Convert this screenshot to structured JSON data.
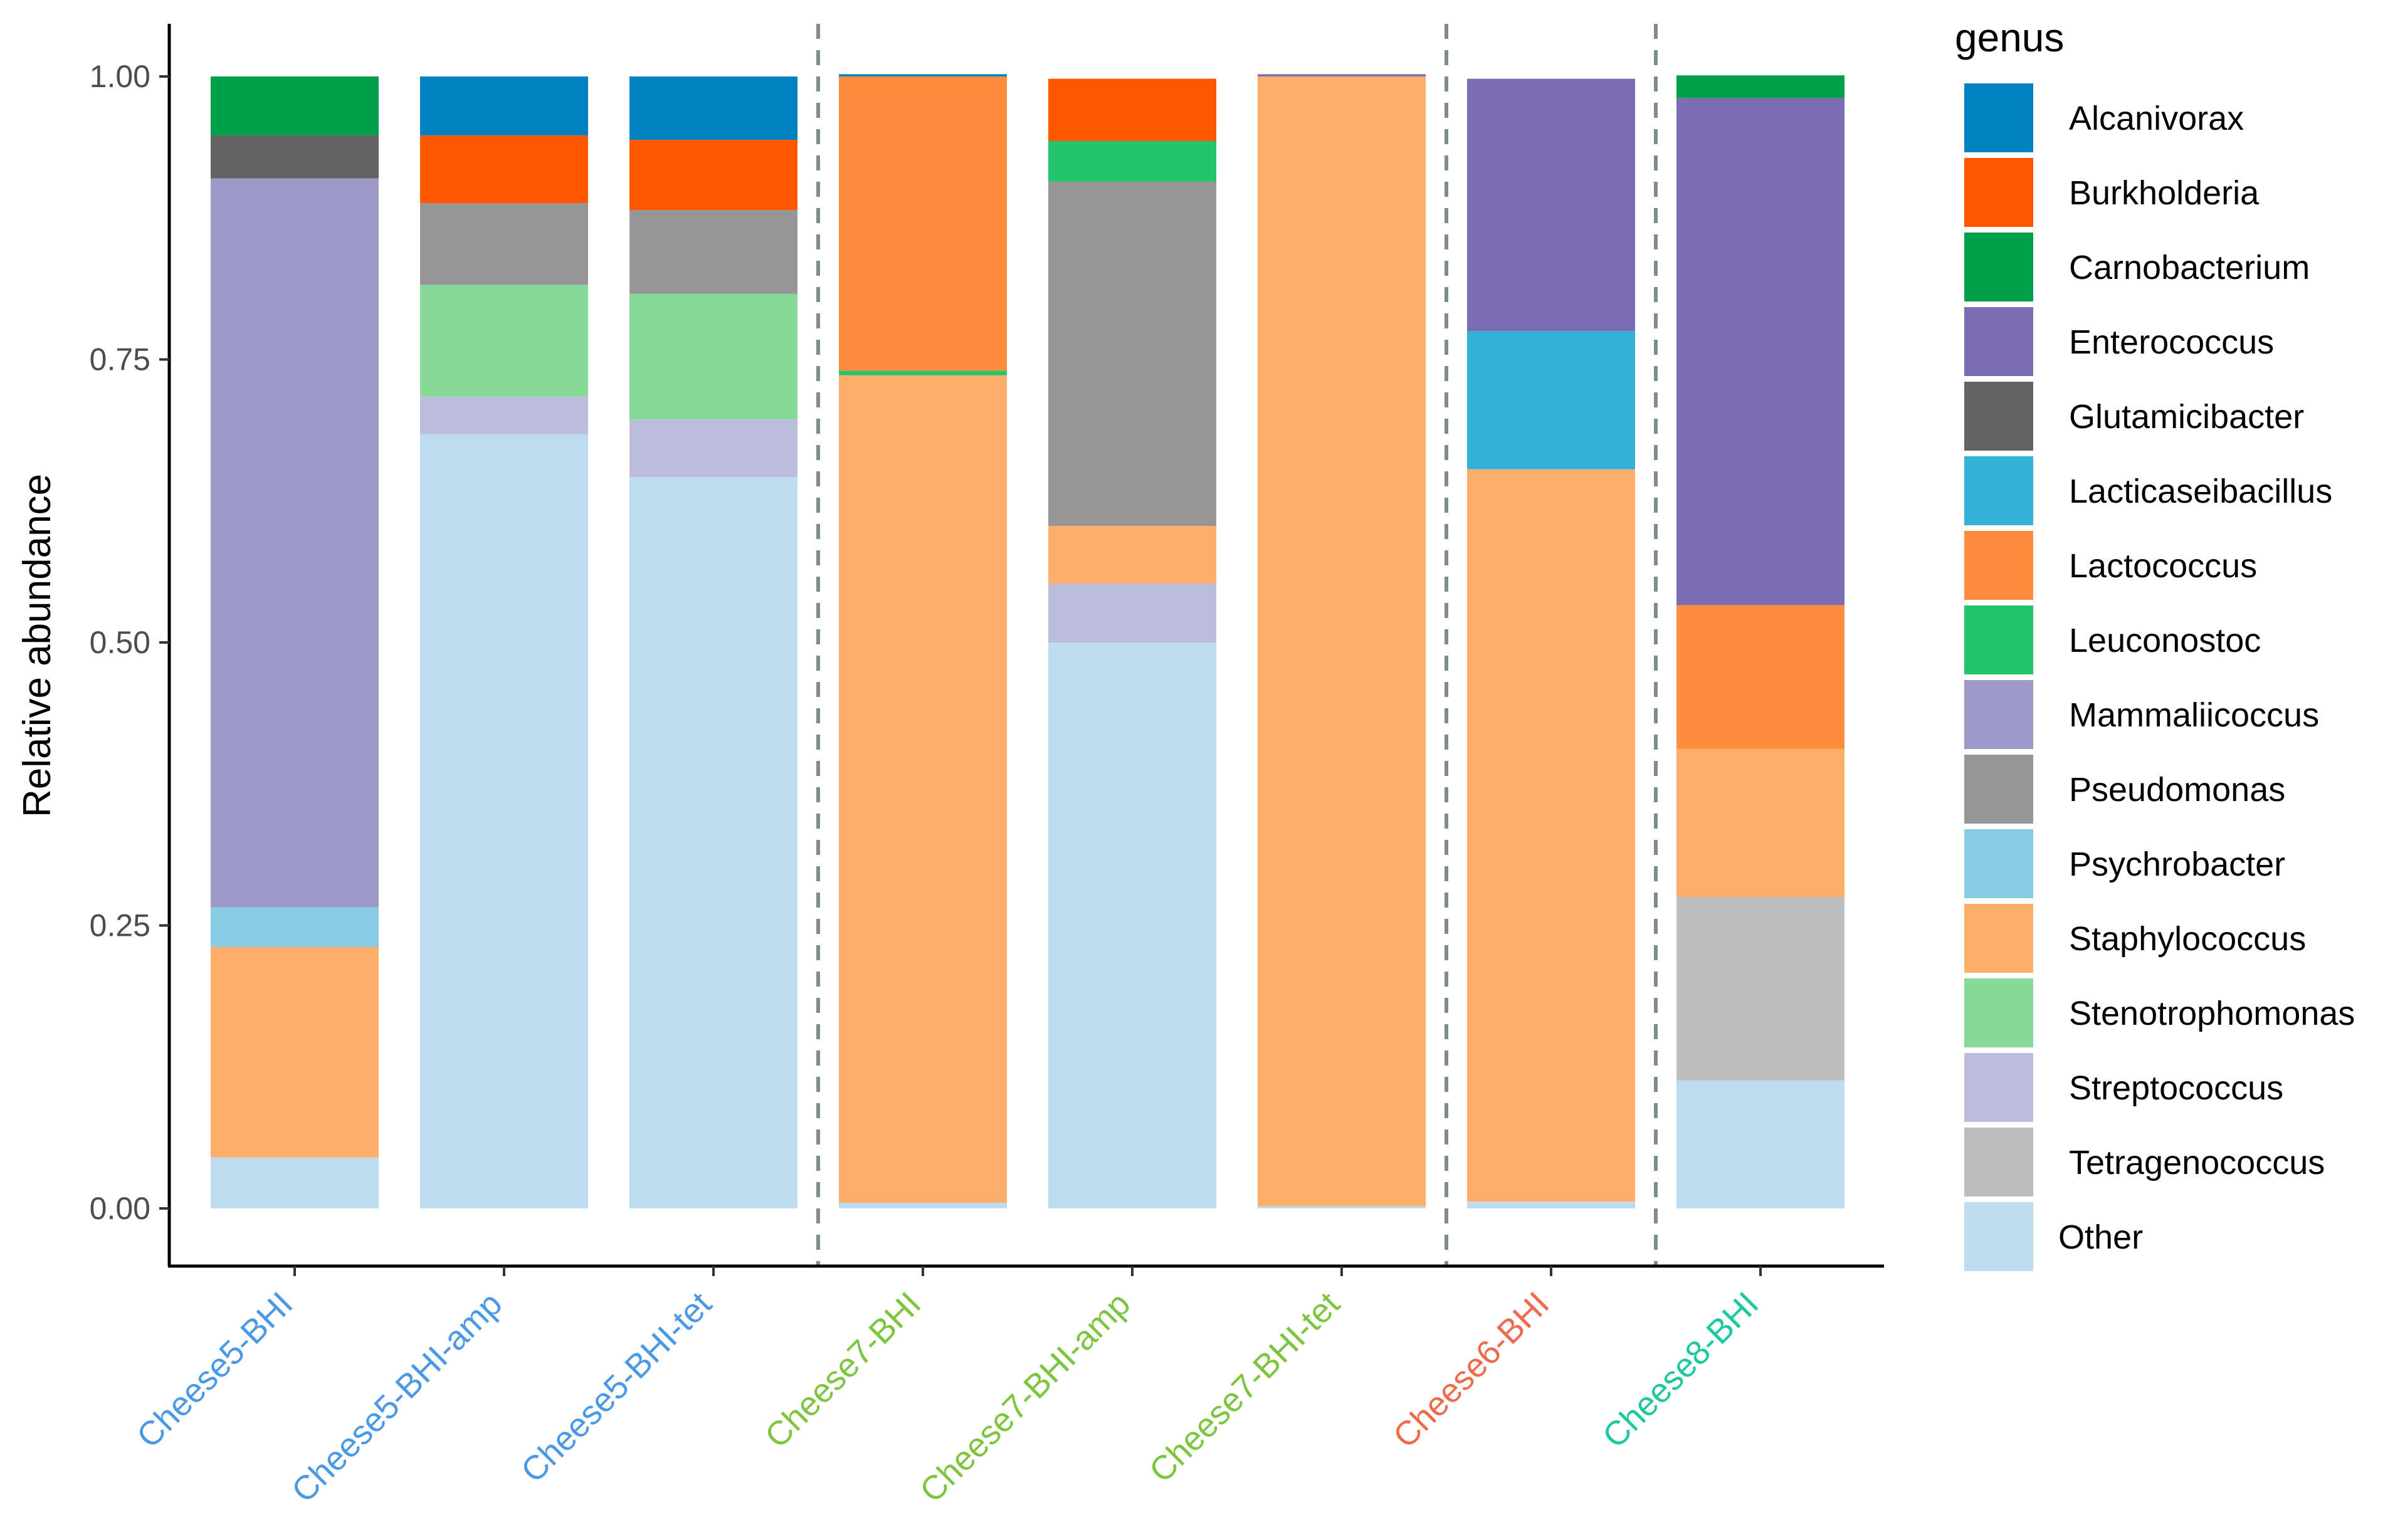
{
  "chart_data": {
    "type": "bar",
    "stacked": true,
    "title": "",
    "xlabel": "",
    "ylabel": "Relative abundance",
    "ylim": [
      0,
      1
    ],
    "yticks": [
      "0.00",
      "0.25",
      "0.50",
      "0.75",
      "1.00"
    ],
    "legend_title": "genus",
    "legend_position": "right",
    "categories": [
      "Cheese5-BHI",
      "Cheese5-BHI-amp",
      "Cheese5-BHI-tet",
      "Cheese7-BHI",
      "Cheese7-BHI-amp",
      "Cheese7-BHI-tet",
      "Cheese6-BHI",
      "Cheese8-BHI"
    ],
    "category_colors": [
      "#4a98e8",
      "#4a98e8",
      "#4a98e8",
      "#7cc63f",
      "#7cc63f",
      "#7cc63f",
      "#f06a4a",
      "#1fc7a0"
    ],
    "group_separators_after": [
      3,
      6,
      7
    ],
    "stack_order": [
      "Other",
      "Tetragenococcus",
      "Streptococcus",
      "Stenotrophomonas",
      "Staphylococcus",
      "Psychrobacter",
      "Pseudomonas",
      "Mammaliicoccus",
      "Leuconostoc",
      "Lactococcus",
      "Lacticaseibacillus",
      "Glutamicibacter",
      "Enterococcus",
      "Carnobacterium",
      "Burkholderia",
      "Alcanivorax"
    ],
    "series": [
      {
        "name": "Alcanivorax",
        "color": "#0082c0",
        "values": [
          0,
          0.052,
          0.056,
          0.002,
          0,
          0,
          0,
          0
        ]
      },
      {
        "name": "Burkholderia",
        "color": "#ff5600",
        "values": [
          0,
          0.06,
          0.062,
          0,
          0.055,
          0,
          0,
          0
        ]
      },
      {
        "name": "Carnobacterium",
        "color": "#00a04a",
        "values": [
          0.052,
          0,
          0,
          0,
          0,
          0,
          0,
          0.02
        ]
      },
      {
        "name": "Enterococcus",
        "color": "#7b6cb4",
        "values": [
          0,
          0,
          0,
          0,
          0,
          0.002,
          0.223,
          0.448
        ]
      },
      {
        "name": "Glutamicibacter",
        "color": "#636363",
        "values": [
          0.038,
          0,
          0,
          0,
          0,
          0,
          0,
          0
        ]
      },
      {
        "name": "Lacticaseibacillus",
        "color": "#34b1d9",
        "values": [
          0,
          0,
          0,
          0,
          0,
          0,
          0.122,
          0
        ]
      },
      {
        "name": "Lactococcus",
        "color": "#fd8d3c",
        "values": [
          0,
          0,
          0,
          0.26,
          0,
          0,
          0,
          0.127
        ]
      },
      {
        "name": "Leuconostoc",
        "color": "#24c46c",
        "values": [
          0,
          0,
          0,
          0.004,
          0.036,
          0,
          0,
          0
        ]
      },
      {
        "name": "Mammaliicoccus",
        "color": "#9e9ac8",
        "values": [
          0.644,
          0,
          0,
          0,
          0,
          0,
          0,
          0
        ]
      },
      {
        "name": "Pseudomonas",
        "color": "#969696",
        "values": [
          0,
          0.072,
          0.074,
          0,
          0.304,
          0,
          0,
          0
        ]
      },
      {
        "name": "Psychrobacter",
        "color": "#87ccE4",
        "values": [
          0.035,
          0,
          0,
          0,
          0,
          0,
          0,
          0
        ]
      },
      {
        "name": "Staphylococcus",
        "color": "#fdae6b",
        "values": [
          0.186,
          0,
          0,
          0.731,
          0.051,
          0.998,
          0.647,
          0.131
        ]
      },
      {
        "name": "Stenotrophomonas",
        "color": "#86d996",
        "values": [
          0,
          0.099,
          0.111,
          0,
          0,
          0,
          0,
          0
        ]
      },
      {
        "name": "Streptococcus",
        "color": "#bcbddc",
        "values": [
          0,
          0.033,
          0.051,
          0,
          0.052,
          0,
          0,
          0
        ]
      },
      {
        "name": "Tetragenococcus",
        "color": "#bdbdbd",
        "values": [
          0,
          0,
          0,
          0,
          0,
          0,
          0,
          0.162
        ]
      },
      {
        "name": "Other",
        "color": "#bedcf0",
        "values": [
          0.045,
          0.684,
          0.646,
          0.005,
          0.5,
          0.002,
          0.006,
          0.113
        ]
      }
    ]
  }
}
